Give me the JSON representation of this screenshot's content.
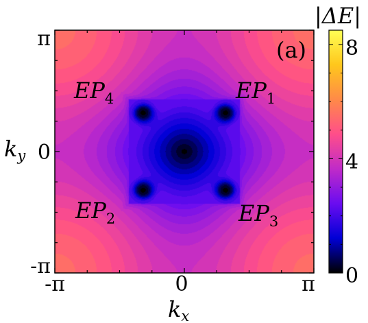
{
  "chart_data": {
    "type": "heatmap",
    "panel_label": "(a)",
    "x_axis": {
      "symbol": "k",
      "subscript": "x",
      "range": [
        -3.14159,
        3.14159
      ],
      "ticks": [
        {
          "value": -3.14159,
          "label": "-π"
        },
        {
          "value": 0,
          "label": "0"
        },
        {
          "value": 3.14159,
          "label": "π"
        }
      ]
    },
    "y_axis": {
      "symbol": "k",
      "subscript": "y",
      "range": [
        -3.14159,
        3.14159
      ],
      "ticks": [
        {
          "value": -3.14159,
          "label": "-π"
        },
        {
          "value": 0,
          "label": "0"
        },
        {
          "value": 3.14159,
          "label": "π"
        }
      ]
    },
    "colorbar": {
      "title": "|ΔE|",
      "range": [
        0,
        8.5
      ],
      "ticks": [
        {
          "value": 0,
          "label": "0"
        },
        {
          "value": 4,
          "label": "4"
        },
        {
          "value": 8,
          "label": "8"
        }
      ],
      "colormap": [
        "#000000",
        "#0000d6",
        "#6a0cf0",
        "#c02bc8",
        "#ff4e8a",
        "#ff8a48",
        "#ffc71c",
        "#ffff55"
      ]
    },
    "exceptional_points": [
      {
        "name": "EP",
        "index": "1",
        "kx": 1.0,
        "ky": 1.0,
        "label_pos": "top-right"
      },
      {
        "name": "EP",
        "index": "4",
        "kx": -1.0,
        "ky": 1.0,
        "label_pos": "top-left"
      },
      {
        "name": "EP",
        "index": "2",
        "kx": -1.0,
        "ky": -1.0,
        "label_pos": "bottom-left"
      },
      {
        "name": "EP",
        "index": "3",
        "kx": 1.0,
        "ky": -1.0,
        "label_pos": "bottom-right"
      }
    ]
  }
}
